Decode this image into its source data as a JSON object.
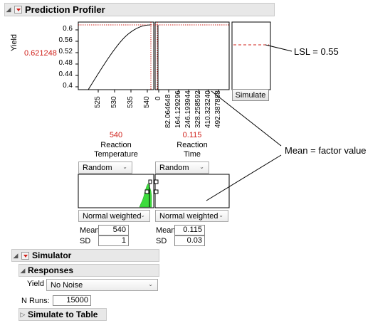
{
  "profiler": {
    "title": "Prediction Profiler",
    "y_label": "Yield",
    "y_value": "0.621248",
    "y_ticks": [
      "0.6",
      "0.56",
      "0.52",
      "0.48",
      "0.44",
      "0.4"
    ],
    "temp_ticks": [
      "525",
      "530",
      "535",
      "540"
    ],
    "time_ticks": [
      "0",
      "82.064648",
      "164.129296",
      "246.193944",
      "328.258592",
      "410.323240",
      "492.387888"
    ],
    "simulate_button": "Simulate",
    "factors": [
      {
        "value": "540",
        "label_line1": "Reaction",
        "label_line2": "Temperature",
        "mode": "Random",
        "distribution": "Normal weighted",
        "mean_label": "Mean",
        "mean": "540",
        "sd_label": "SD",
        "sd": "1"
      },
      {
        "value": "0.115",
        "label_line1": "Reaction",
        "label_line2": "Time",
        "mode": "Random",
        "distribution": "Normal weighted",
        "mean_label": "Mean",
        "mean": "0.115",
        "sd_label": "SD",
        "sd": "0.03"
      }
    ]
  },
  "callouts": {
    "lsl": "LSL = 0.55",
    "mean": "Mean = factor value"
  },
  "simulator": {
    "title": "Simulator",
    "responses_title": "Responses",
    "yield_label": "Yield",
    "yield_noise": "No Noise",
    "nruns_label": "N Runs:",
    "nruns": "15000",
    "simulate_to_table": "Simulate to Table"
  },
  "colors": {
    "accent_red": "#d0201a",
    "header_bg": "#e8e8e8",
    "histogram_green": "#3ddc3d"
  }
}
